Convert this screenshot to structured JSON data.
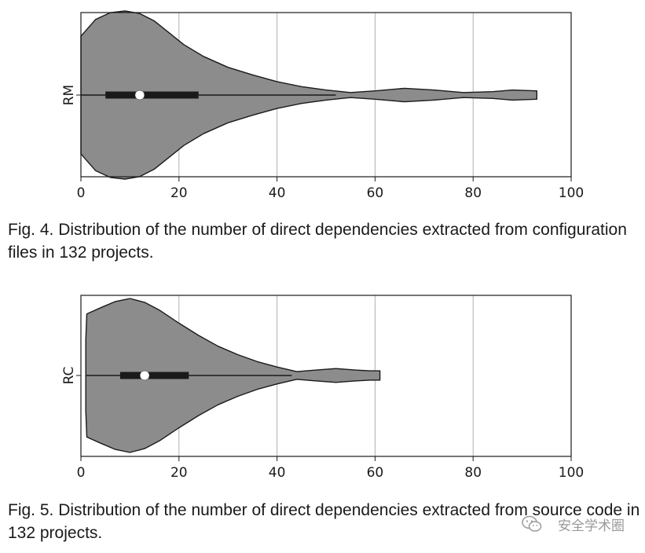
{
  "chart_data": [
    {
      "type": "violin",
      "orientation": "horizontal",
      "category": "RM",
      "xlim": [
        0,
        100
      ],
      "xticks": [
        0,
        20,
        40,
        60,
        80,
        100
      ],
      "grid": "vertical",
      "stats": {
        "min": 0,
        "q1": 5,
        "median": 12,
        "q3": 24,
        "max": 93,
        "whisker_high": 52
      },
      "density": [
        [
          0,
          0.7
        ],
        [
          3,
          0.9
        ],
        [
          6,
          0.98
        ],
        [
          9,
          1.0
        ],
        [
          12,
          0.97
        ],
        [
          15,
          0.88
        ],
        [
          18,
          0.74
        ],
        [
          21,
          0.6
        ],
        [
          25,
          0.46
        ],
        [
          30,
          0.33
        ],
        [
          35,
          0.24
        ],
        [
          40,
          0.16
        ],
        [
          45,
          0.1
        ],
        [
          50,
          0.06
        ],
        [
          55,
          0.03
        ],
        [
          60,
          0.05
        ],
        [
          66,
          0.08
        ],
        [
          72,
          0.06
        ],
        [
          78,
          0.03
        ],
        [
          84,
          0.04
        ],
        [
          88,
          0.06
        ],
        [
          93,
          0.05
        ]
      ],
      "caption": "Fig. 4. Distribution of the number of direct dependencies extracted from configuration files in 132 projects.",
      "fill": "#8c8c8c",
      "box_color": "#1a1a1a",
      "median_color": "#ffffff"
    },
    {
      "type": "violin",
      "orientation": "horizontal",
      "category": "RC",
      "xlim": [
        0,
        100
      ],
      "xticks": [
        0,
        20,
        40,
        60,
        80,
        100
      ],
      "grid": "vertical",
      "stats": {
        "min": 1,
        "q1": 8,
        "median": 13,
        "q3": 22,
        "max": 61,
        "whisker_high": 43
      },
      "density": [
        [
          1,
          0.46
        ],
        [
          1.2,
          0.8
        ],
        [
          4,
          0.88
        ],
        [
          7,
          0.96
        ],
        [
          10,
          1.0
        ],
        [
          13,
          0.95
        ],
        [
          16,
          0.85
        ],
        [
          20,
          0.68
        ],
        [
          24,
          0.52
        ],
        [
          28,
          0.38
        ],
        [
          32,
          0.27
        ],
        [
          36,
          0.18
        ],
        [
          40,
          0.11
        ],
        [
          44,
          0.05
        ],
        [
          48,
          0.07
        ],
        [
          52,
          0.09
        ],
        [
          56,
          0.07
        ],
        [
          59,
          0.06
        ],
        [
          61,
          0.06
        ]
      ],
      "caption": "Fig. 5. Distribution of the number of direct dependencies extracted from source code in 132 projects.",
      "fill": "#8c8c8c",
      "box_color": "#1a1a1a",
      "median_color": "#ffffff"
    }
  ],
  "watermark": {
    "text": "安全学术圈",
    "icon": "wechat-icon"
  }
}
